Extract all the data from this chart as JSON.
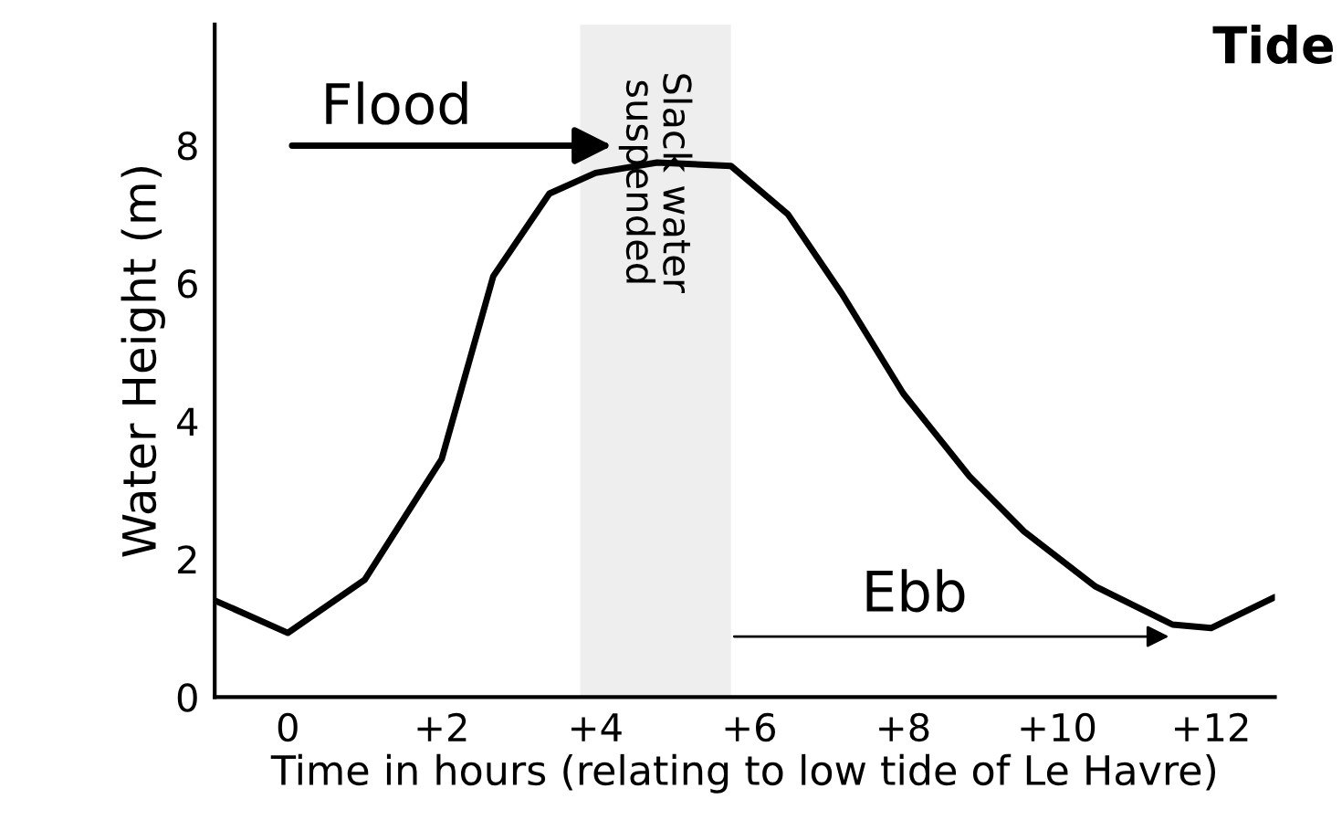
{
  "chart_data": {
    "type": "line",
    "title": "Tide",
    "xlabel": "Time in hours (relating to low tide of Le Havre)",
    "ylabel": "Water Height (m)",
    "x": [
      -0.95,
      0,
      1,
      2,
      2.67,
      3.4,
      4,
      4.8,
      5.76,
      6.5,
      7.2,
      8,
      8.86,
      9.57,
      10.5,
      11.5,
      12,
      12.83
    ],
    "series": [
      {
        "color": "#000000",
        "values": [
          1.4,
          0.93,
          1.7,
          3.45,
          6.1,
          7.3,
          7.6,
          7.75,
          7.7,
          7.0,
          5.85,
          4.4,
          3.2,
          2.4,
          1.6,
          1.05,
          1.0,
          1.45
        ]
      }
    ],
    "xlim": [
      -0.95,
      12.83
    ],
    "ylim": [
      0,
      9.75
    ],
    "xticks": [
      0,
      {
        "value": 2,
        "label": "+2"
      },
      {
        "value": 4,
        "label": "+4"
      },
      {
        "value": 6,
        "label": "+6"
      },
      {
        "value": 8,
        "label": "+8"
      },
      {
        "value": 10,
        "label": "+10"
      },
      {
        "value": 12,
        "label": "+12"
      }
    ],
    "yticks": [
      0,
      2,
      4,
      6,
      8
    ],
    "bands": [
      {
        "axis": "x",
        "from": 3.8,
        "to": 5.76,
        "label": "Slack water\nsuspended",
        "color": "#eeeeee"
      }
    ],
    "annotations": [
      "Flood",
      "Ebb"
    ],
    "grid": false,
    "legend": false
  }
}
